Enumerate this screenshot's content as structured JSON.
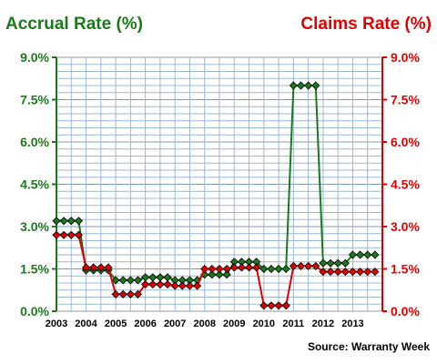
{
  "chart_data": {
    "type": "line",
    "left_axis_title": "Accrual Rate (%)",
    "right_axis_title": "Claims Rate (%)",
    "source": "Source: Warranty Week",
    "ylim": [
      0,
      9.0
    ],
    "y_ticks": [
      "0.0%",
      "1.5%",
      "3.0%",
      "4.5%",
      "6.0%",
      "7.5%",
      "9.0%"
    ],
    "x_ticks": [
      "2003",
      "2004",
      "2005",
      "2006",
      "2007",
      "2008",
      "2009",
      "2010",
      "2011",
      "2012",
      "2013"
    ],
    "xlim": [
      2003,
      2014
    ],
    "grid": true,
    "colors": {
      "accrual": "#1a7a1a",
      "claims": "#e00000",
      "grid": "#9bb7d4",
      "frame": "#999999"
    },
    "x": [
      2003.0,
      2003.25,
      2003.5,
      2003.75,
      2004.0,
      2004.25,
      2004.5,
      2004.75,
      2005.0,
      2005.25,
      2005.5,
      2005.75,
      2006.0,
      2006.25,
      2006.5,
      2006.75,
      2007.0,
      2007.25,
      2007.5,
      2007.75,
      2008.0,
      2008.25,
      2008.5,
      2008.75,
      2009.0,
      2009.25,
      2009.5,
      2009.75,
      2010.0,
      2010.25,
      2010.5,
      2010.75,
      2011.0,
      2011.25,
      2011.5,
      2011.75,
      2012.0,
      2012.25,
      2012.5,
      2012.75,
      2013.0,
      2013.25,
      2013.5,
      2013.75
    ],
    "series": [
      {
        "key": "accrual",
        "values": [
          3.2,
          3.2,
          3.2,
          3.2,
          1.45,
          1.45,
          1.45,
          1.45,
          1.1,
          1.1,
          1.1,
          1.1,
          1.2,
          1.2,
          1.2,
          1.2,
          1.1,
          1.1,
          1.1,
          1.1,
          1.3,
          1.3,
          1.3,
          1.3,
          1.75,
          1.75,
          1.75,
          1.75,
          1.5,
          1.5,
          1.5,
          1.5,
          8.0,
          8.0,
          8.0,
          8.0,
          1.7,
          1.7,
          1.7,
          1.7,
          2.0,
          2.0,
          2.0,
          2.0
        ]
      },
      {
        "key": "claims",
        "values": [
          2.7,
          2.7,
          2.7,
          2.7,
          1.55,
          1.55,
          1.55,
          1.55,
          0.6,
          0.6,
          0.6,
          0.6,
          0.95,
          0.95,
          0.95,
          0.95,
          0.9,
          0.9,
          0.9,
          0.9,
          1.5,
          1.5,
          1.5,
          1.5,
          1.55,
          1.55,
          1.55,
          1.55,
          0.2,
          0.2,
          0.2,
          0.2,
          1.6,
          1.6,
          1.6,
          1.6,
          1.4,
          1.4,
          1.4,
          1.4,
          1.4,
          1.4,
          1.4,
          1.4
        ]
      }
    ]
  }
}
